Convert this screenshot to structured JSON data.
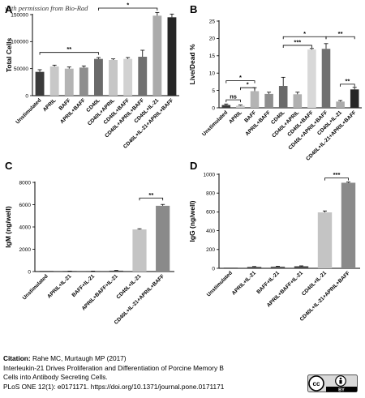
{
  "watermark": "with permission from Bio-Rad",
  "charts": [
    {
      "panel": "A",
      "type": "bar",
      "ylabel": "Total Cells",
      "ylim": [
        0,
        150000
      ],
      "yticks": [
        0,
        50000,
        100000,
        150000
      ],
      "ytick_labels": [
        "0",
        "50000",
        "100000",
        "150000"
      ],
      "categories": [
        "Unstimulated",
        "APRIL",
        "BAFF",
        "APRIL+BAFF",
        "CD40L",
        "CD40L+APRIL",
        "CD40L+BAFF",
        "CD40L+APRIL+BAFF",
        "CD40L+IL-21",
        "CD40L+IL-21+APRIL+BAFF"
      ],
      "values": [
        44000,
        54000,
        50000,
        52000,
        68000,
        66000,
        68000,
        72000,
        148000,
        145000
      ],
      "errors": [
        4000,
        2500,
        3000,
        3000,
        2500,
        2000,
        2500,
        12000,
        6000,
        6000
      ],
      "colors": [
        "#3a3a3a",
        "#c8c8c8",
        "#b4b4b4",
        "#8e8e8e",
        "#6a6a6a",
        "#c6c6c6",
        "#d2d2d2",
        "#707070",
        "#ababab",
        "#262626"
      ],
      "annotations": [
        {
          "from": 0,
          "to": 4,
          "label": "**",
          "y": 80000
        },
        {
          "from": 4,
          "to": 8,
          "label": "*",
          "y": 162000
        }
      ]
    },
    {
      "panel": "B",
      "type": "bar",
      "ylabel": "Live/Dead %",
      "ylim": [
        0,
        25
      ],
      "yticks": [
        0,
        5,
        10,
        15,
        20,
        25
      ],
      "ytick_labels": [
        "0",
        "5",
        "10",
        "15",
        "20",
        "25"
      ],
      "categories": [
        "Unstimulated",
        "APRIL",
        "BAFF",
        "APRIL+BAFF",
        "CD40L",
        "CD40L+APRIL",
        "CD40L+BAFF",
        "CD40L+APRIL+BAFF",
        "CD40L+IL-21",
        "CD40L+IL-21+APRIL+BAFF"
      ],
      "values": [
        0.8,
        0.6,
        4.8,
        4.0,
        6.3,
        3.9,
        16.8,
        17.0,
        1.8,
        5.3
      ],
      "errors": [
        0.3,
        0.2,
        1.0,
        0.5,
        2.5,
        0.6,
        0.3,
        1.5,
        0.3,
        0.6
      ],
      "colors": [
        "#3a3a3a",
        "#c8c8c8",
        "#b4b4b4",
        "#8e8e8e",
        "#6a6a6a",
        "#b0b0b0",
        "#d8d8d8",
        "#707070",
        "#ababab",
        "#262626"
      ],
      "annotations": [
        {
          "from": 0,
          "to": 1,
          "label": "ns",
          "y": 2.3
        },
        {
          "from": 0,
          "to": 2,
          "label": "*",
          "y": 7.8
        },
        {
          "from": 1,
          "to": 2,
          "label": "*",
          "y": 5.8
        },
        {
          "from": 4,
          "to": 6,
          "label": "***",
          "y": 18.0
        },
        {
          "from": 4,
          "to": 7,
          "label": "*",
          "y": 20.5
        },
        {
          "from": 8,
          "to": 9,
          "label": "**",
          "y": 6.8
        },
        {
          "from": 7,
          "to": 9,
          "label": "**",
          "y": 20.5
        }
      ]
    },
    {
      "panel": "C",
      "type": "bar",
      "ylabel": "IgM (ng/well)",
      "ylim": [
        0,
        8000
      ],
      "yticks": [
        0,
        2000,
        4000,
        6000,
        8000
      ],
      "ytick_labels": [
        "0",
        "2000",
        "4000",
        "6000",
        "8000"
      ],
      "categories": [
        "Unstimulated",
        "APRIL+IL-21",
        "BAFF+IL-21",
        "APRIL+BAFF+IL-21",
        "CD40L+IL-21",
        "CD40L+IL-21+APRIL+BAFF"
      ],
      "values": [
        0,
        20,
        30,
        80,
        3780,
        5900
      ],
      "errors": [
        0,
        10,
        10,
        20,
        60,
        120
      ],
      "colors": [
        "#3a3a3a",
        "#4a4a4a",
        "#5a5a5a",
        "#4a4a4a",
        "#c4c4c4",
        "#8a8a8a"
      ],
      "annotations": [
        {
          "from": 4,
          "to": 5,
          "label": "**",
          "y": 6600
        }
      ]
    },
    {
      "panel": "D",
      "type": "bar",
      "ylabel": "IgG (ng/well)",
      "ylim": [
        0,
        1000
      ],
      "yticks": [
        0,
        200,
        400,
        600,
        800,
        1000
      ],
      "ytick_labels": [
        "0",
        "200",
        "400",
        "600",
        "800",
        "1000"
      ],
      "categories": [
        "Unstimulated",
        "APRIL+IL-21",
        "BAFF+IL-21",
        "APRIL+BAFF+IL-21",
        "CD40L+IL-21",
        "CD40L+IL-21+APRIL+BAFF"
      ],
      "values": [
        0,
        15,
        18,
        22,
        595,
        910
      ],
      "errors": [
        0,
        4,
        4,
        4,
        15,
        8
      ],
      "colors": [
        "#3a3a3a",
        "#4a4a4a",
        "#5a5a5a",
        "#4a4a4a",
        "#c4c4c4",
        "#8a8a8a"
      ],
      "annotations": [
        {
          "from": 4,
          "to": 5,
          "label": "***",
          "y": 960
        }
      ]
    }
  ],
  "citation": {
    "label": "Citation:",
    "authors": "Rahe MC, Murtaugh MP (2017)",
    "title_line1": "Interleukin-21 Drives Proliferation and Differentiation of Porcine Memory B",
    "title_line2": "Cells into Antibody Secreting Cells.",
    "journal": "PLoS ONE 12(1): e0171171. https://doi.org/10.1371/journal.pone.0171171"
  },
  "license": {
    "cc": "cc",
    "by": "BY"
  }
}
